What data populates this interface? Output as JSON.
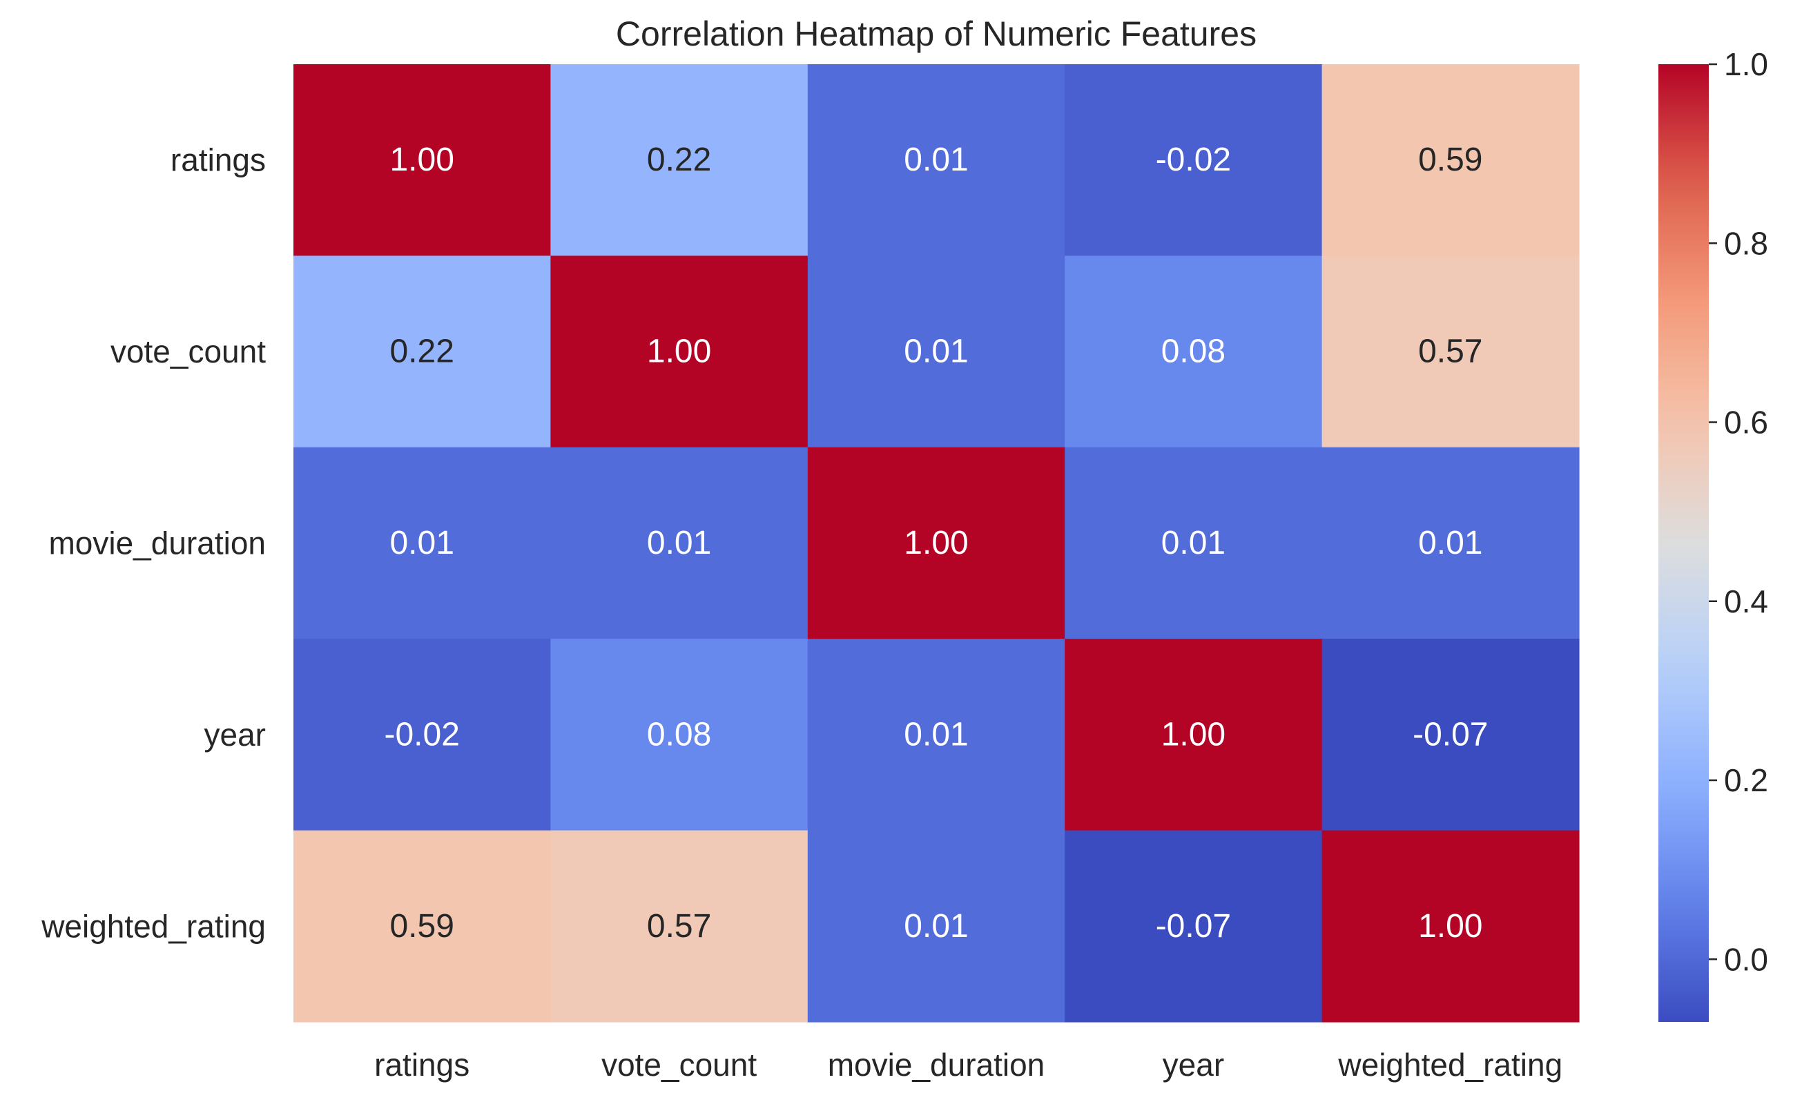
{
  "chart_data": {
    "type": "heatmap",
    "title": "Correlation Heatmap of Numeric Features",
    "xlabel": "",
    "ylabel": "",
    "rows": [
      "ratings",
      "vote_count",
      "movie_duration",
      "year",
      "weighted_rating"
    ],
    "columns": [
      "ratings",
      "vote_count",
      "movie_duration",
      "year",
      "weighted_rating"
    ],
    "values": [
      [
        1.0,
        0.22,
        0.01,
        -0.02,
        0.59
      ],
      [
        0.22,
        1.0,
        0.01,
        0.08,
        0.57
      ],
      [
        0.01,
        0.01,
        1.0,
        0.01,
        0.01
      ],
      [
        -0.02,
        0.08,
        0.01,
        1.0,
        -0.07
      ],
      [
        0.59,
        0.57,
        0.01,
        -0.07,
        1.0
      ]
    ],
    "labels": [
      [
        "1.00",
        "0.22",
        "0.01",
        "-0.02",
        "0.59"
      ],
      [
        "0.22",
        "1.00",
        "0.01",
        "0.08",
        "0.57"
      ],
      [
        "0.01",
        "0.01",
        "1.00",
        "0.01",
        "0.01"
      ],
      [
        "-0.02",
        "0.08",
        "0.01",
        "1.00",
        "-0.07"
      ],
      [
        "0.59",
        "0.57",
        "0.01",
        "-0.07",
        "1.00"
      ]
    ],
    "colormap": "coolwarm",
    "colorbar": {
      "min": -0.07,
      "max": 1.0,
      "ticks": [
        0.0,
        0.2,
        0.4,
        0.6,
        0.8,
        1.0
      ],
      "tick_labels": [
        "0.0",
        "0.2",
        "0.4",
        "0.6",
        "0.8",
        "1.0"
      ]
    },
    "grid": false,
    "legend": "colorbar-right"
  }
}
